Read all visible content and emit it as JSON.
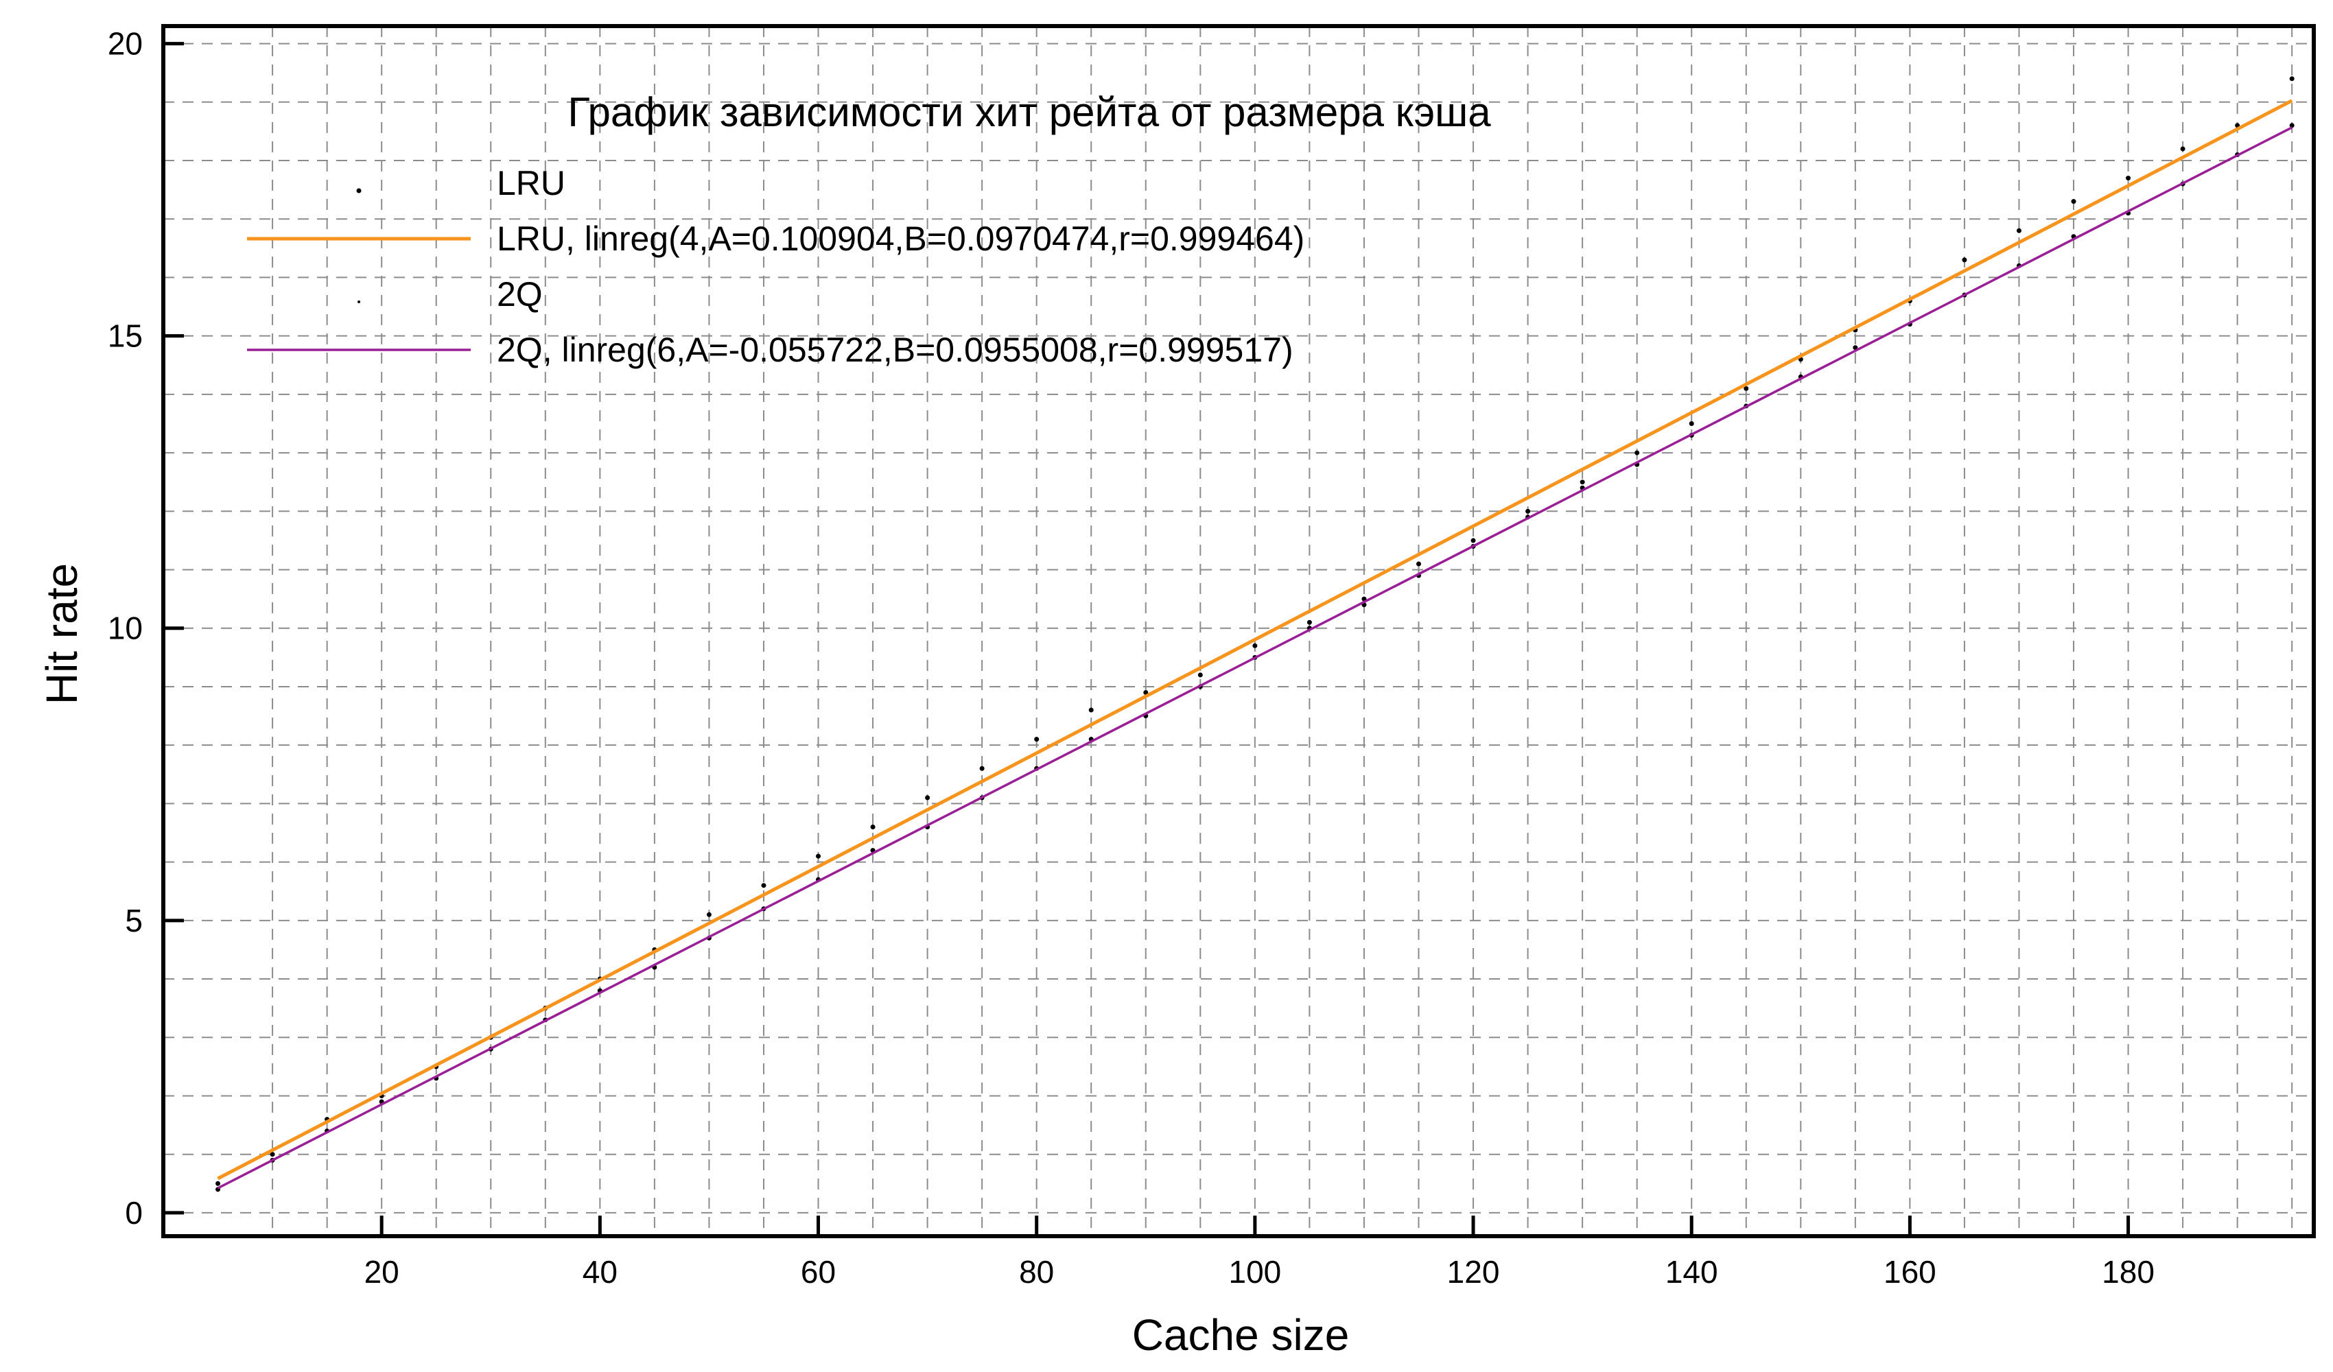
{
  "chart_data": {
    "type": "line",
    "title": "График зависимости  хит рейта от размера кэша",
    "xlabel": "Cache size",
    "ylabel": "Hit rate",
    "xlim": [
      0,
      197
    ],
    "ylim": [
      -0.4,
      20.3
    ],
    "xticks": [
      20,
      40,
      60,
      80,
      100,
      120,
      140,
      160,
      180
    ],
    "yticks": [
      0,
      5,
      10,
      15,
      20
    ],
    "grid": true,
    "legend_position": "top-left",
    "series": [
      {
        "name": "LRU",
        "kind": "scatter",
        "color": "#000000",
        "x": [
          5,
          10,
          15,
          20,
          25,
          30,
          35,
          40,
          45,
          50,
          55,
          60,
          65,
          70,
          75,
          80,
          85,
          90,
          95,
          100,
          105,
          110,
          115,
          120,
          125,
          130,
          135,
          140,
          145,
          150,
          155,
          160,
          165,
          170,
          175,
          180,
          185,
          190,
          195
        ],
        "y": [
          0.5,
          1.0,
          1.6,
          2.0,
          2.5,
          3.0,
          3.5,
          4.0,
          4.5,
          5.1,
          5.6,
          6.1,
          6.6,
          7.1,
          7.6,
          8.1,
          8.6,
          8.9,
          9.2,
          9.7,
          10.1,
          10.5,
          11.1,
          11.5,
          12.0,
          12.5,
          13.0,
          13.5,
          14.1,
          14.6,
          15.1,
          15.6,
          16.3,
          16.8,
          17.3,
          17.7,
          18.2,
          18.6,
          19.4
        ]
      },
      {
        "name": "LRU, linreg(4,A=0.100904,B=0.0970474,r=0.999464)",
        "kind": "line",
        "color": "#f7941d",
        "x": [
          5,
          195
        ],
        "y": [
          0.586,
          19.024
        ]
      },
      {
        "name": "2Q",
        "kind": "scatter",
        "color": "#000000",
        "x": [
          5,
          10,
          15,
          20,
          25,
          30,
          35,
          40,
          45,
          50,
          55,
          60,
          65,
          70,
          75,
          80,
          85,
          90,
          95,
          100,
          105,
          110,
          115,
          120,
          125,
          130,
          135,
          140,
          145,
          150,
          155,
          160,
          165,
          170,
          175,
          180,
          185,
          190,
          195
        ],
        "y": [
          0.4,
          0.9,
          1.4,
          1.9,
          2.3,
          2.8,
          3.3,
          3.8,
          4.2,
          4.7,
          5.2,
          5.7,
          6.2,
          6.6,
          7.1,
          7.6,
          8.1,
          8.5,
          9.0,
          9.5,
          10.0,
          10.4,
          10.9,
          11.4,
          11.9,
          12.4,
          12.8,
          13.3,
          13.8,
          14.3,
          14.8,
          15.2,
          15.7,
          16.2,
          16.7,
          17.1,
          17.6,
          18.1,
          18.6
        ]
      },
      {
        "name": "2Q, linreg(6,A=-0.055722,B=0.0955008,r=0.999517)",
        "kind": "line",
        "color": "#9a1e96",
        "x": [
          5,
          195
        ],
        "y": [
          0.422,
          18.566
        ]
      }
    ]
  }
}
